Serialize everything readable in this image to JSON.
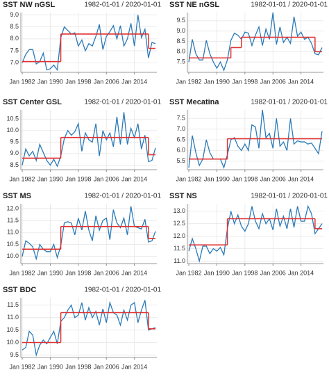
{
  "chart_data": [
    {
      "type": "line",
      "title": "SST NW nGSL",
      "subtitle": "1982-01-01 / 2020-01-01",
      "color": "#2a7ab8",
      "mean_color": "#e03030",
      "x": [
        1982,
        1983,
        1984,
        1985,
        1986,
        1987,
        1988,
        1989,
        1990,
        1991,
        1992,
        1993,
        1994,
        1995,
        1996,
        1997,
        1998,
        1999,
        2000,
        2001,
        2002,
        2003,
        2004,
        2005,
        2006,
        2007,
        2008,
        2009,
        2010,
        2011,
        2012,
        2013,
        2014,
        2015,
        2016,
        2017,
        2018,
        2019,
        2020
      ],
      "values": [
        7.0,
        7.35,
        7.55,
        7.55,
        6.95,
        7.05,
        7.4,
        6.7,
        6.75,
        6.9,
        6.7,
        8.05,
        8.5,
        8.35,
        8.2,
        8.25,
        7.7,
        7.95,
        7.5,
        7.8,
        7.7,
        8.1,
        8.6,
        7.55,
        8.1,
        8.3,
        8.55,
        8.0,
        8.55,
        7.7,
        8.0,
        8.65,
        7.7,
        9.0,
        8.05,
        8.4,
        7.2,
        7.85,
        7.8
      ],
      "mean_segments": [
        {
          "start": 1982,
          "end": 1993,
          "value": 7.05
        },
        {
          "start": 1993,
          "end": 2018,
          "value": 8.2
        },
        {
          "start": 2018,
          "end": 2020,
          "value": 7.6
        }
      ],
      "xlim": [
        1981.6,
        2020.4
      ],
      "xticks": [
        {
          "value": 1982,
          "label": "Jan 1982"
        },
        {
          "value": 1990,
          "label": "Jan 1990"
        },
        {
          "value": 1998,
          "label": "Jan 1998"
        },
        {
          "value": 2006,
          "label": "Jan 2006"
        },
        {
          "value": 2014,
          "label": "Jan 2014"
        }
      ],
      "ylim": [
        6.6,
        9.1
      ],
      "yticks": [
        {
          "value": 7,
          "label": "7.0"
        },
        7.5,
        {
          "value": 8,
          "label": "8.0"
        },
        8.5,
        {
          "value": 9,
          "label": "9.0"
        }
      ],
      "grid": true
    },
    {
      "type": "line",
      "title": "SST NE nGSL",
      "subtitle": "1982-01-01 / 2020-01-01",
      "color": "#2a7ab8",
      "mean_color": "#e03030",
      "x": [
        1982,
        1983,
        1984,
        1985,
        1986,
        1987,
        1988,
        1989,
        1990,
        1991,
        1992,
        1993,
        1994,
        1995,
        1996,
        1997,
        1998,
        1999,
        2000,
        2001,
        2002,
        2003,
        2004,
        2005,
        2006,
        2007,
        2008,
        2009,
        2010,
        2011,
        2012,
        2013,
        2014,
        2015,
        2016,
        2017,
        2018,
        2019,
        2020
      ],
      "values": [
        7.5,
        8.6,
        7.9,
        7.6,
        7.6,
        8.55,
        7.9,
        7.5,
        7.2,
        7.5,
        7.1,
        7.6,
        8.55,
        8.9,
        8.8,
        8.6,
        8.95,
        8.9,
        8.3,
        8.8,
        9.2,
        8.3,
        9.1,
        8.6,
        9.9,
        8.35,
        9.2,
        8.45,
        8.7,
        8.4,
        9.7,
        8.75,
        8.95,
        8.6,
        8.7,
        8.4,
        7.9,
        7.85,
        8.2
      ],
      "mean_segments": [
        {
          "start": 1982,
          "end": 1994,
          "value": 7.7
        },
        {
          "start": 1994,
          "end": 1997,
          "value": 8.2
        },
        {
          "start": 1997,
          "end": 2018,
          "value": 8.7
        },
        {
          "start": 2018,
          "end": 2020,
          "value": 8.0
        }
      ],
      "xlim": [
        1981.6,
        2020.4
      ],
      "xticks": [
        {
          "value": 1982,
          "label": "Jan 1982"
        },
        {
          "value": 1990,
          "label": "Jan 1990"
        },
        {
          "value": 1998,
          "label": "Jan 1998"
        },
        {
          "value": 2006,
          "label": "Jan 2006"
        },
        {
          "value": 2014,
          "label": "Jan 2014"
        }
      ],
      "ylim": [
        7.0,
        9.9
      ],
      "yticks": [
        7.5,
        {
          "value": 8,
          "label": "8.0"
        },
        8.5,
        {
          "value": 9,
          "label": "9.0"
        },
        9.5
      ],
      "grid": true
    },
    {
      "type": "line",
      "title": "SST Center GSL",
      "subtitle": "1982-01-01 / 2020-01-01",
      "color": "#2a7ab8",
      "mean_color": "#e03030",
      "x": [
        1982,
        1983,
        1984,
        1985,
        1986,
        1987,
        1988,
        1989,
        1990,
        1991,
        1992,
        1993,
        1994,
        1995,
        1996,
        1997,
        1998,
        1999,
        2000,
        2001,
        2002,
        2003,
        2004,
        2005,
        2006,
        2007,
        2008,
        2009,
        2010,
        2011,
        2012,
        2013,
        2014,
        2015,
        2016,
        2017,
        2018,
        2019,
        2020
      ],
      "values": [
        8.5,
        9.2,
        8.9,
        9.1,
        8.7,
        9.4,
        9.05,
        8.7,
        8.5,
        8.75,
        8.45,
        8.9,
        9.65,
        10.0,
        9.8,
        9.95,
        10.3,
        9.1,
        9.9,
        9.6,
        9.5,
        10.3,
        8.9,
        10.0,
        9.6,
        9.9,
        9.3,
        10.6,
        9.4,
        10.8,
        9.4,
        10.1,
        9.7,
        10.3,
        9.2,
        9.8,
        8.65,
        8.7,
        9.25
      ],
      "mean_segments": [
        {
          "start": 1982,
          "end": 1993,
          "value": 8.8
        },
        {
          "start": 1993,
          "end": 2018,
          "value": 9.7
        },
        {
          "start": 2018,
          "end": 2020,
          "value": 8.95
        }
      ],
      "xlim": [
        1981.6,
        2020.4
      ],
      "xticks": [
        {
          "value": 1982,
          "label": "Jan 1982"
        },
        {
          "value": 1990,
          "label": "Jan 1990"
        },
        {
          "value": 1998,
          "label": "Jan 1998"
        },
        {
          "value": 2006,
          "label": "Jan 2006"
        },
        {
          "value": 2014,
          "label": "Jan 2014"
        }
      ],
      "ylim": [
        8.3,
        10.9
      ],
      "yticks": [
        8.5,
        {
          "value": 9,
          "label": "9.0"
        },
        9.5,
        {
          "value": 10,
          "label": "10.0"
        },
        10.5
      ],
      "grid": true
    },
    {
      "type": "line",
      "title": "SST Mecatina",
      "subtitle": "1982-01-01 / 2020-01-01",
      "color": "#2a7ab8",
      "mean_color": "#e03030",
      "x": [
        1982,
        1983,
        1984,
        1985,
        1986,
        1987,
        1988,
        1989,
        1990,
        1991,
        1992,
        1993,
        1994,
        1995,
        1996,
        1997,
        1998,
        1999,
        2000,
        2001,
        2002,
        2003,
        2004,
        2005,
        2006,
        2007,
        2008,
        2009,
        2010,
        2011,
        2012,
        2013,
        2014,
        2015,
        2016,
        2017,
        2018,
        2019,
        2020
      ],
      "values": [
        5.2,
        6.7,
        5.9,
        5.3,
        5.6,
        6.5,
        5.9,
        5.6,
        5.6,
        5.6,
        5.2,
        5.8,
        6.5,
        6.6,
        6.2,
        6.0,
        6.3,
        6.0,
        7.2,
        7.1,
        6.1,
        7.9,
        6.6,
        6.8,
        6.1,
        7.5,
        6.2,
        6.4,
        6.0,
        7.5,
        6.3,
        6.45,
        6.4,
        6.4,
        6.3,
        6.35,
        6.1,
        5.85,
        6.9
      ],
      "mean_segments": [
        {
          "start": 1982,
          "end": 1993,
          "value": 5.6
        },
        {
          "start": 1993,
          "end": 2020,
          "value": 6.55
        }
      ],
      "xlim": [
        1981.6,
        2020.4
      ],
      "xticks": [
        {
          "value": 1982,
          "label": "Jan 1982"
        },
        {
          "value": 1990,
          "label": "Jan 1990"
        },
        {
          "value": 1998,
          "label": "Jan 1998"
        },
        {
          "value": 2006,
          "label": "Jan 2006"
        },
        {
          "value": 2014,
          "label": "Jan 2014"
        }
      ],
      "ylim": [
        5.1,
        7.9
      ],
      "yticks": [
        5.5,
        {
          "value": 6,
          "label": "6.0"
        },
        6.5,
        {
          "value": 7,
          "label": "7.0"
        },
        7.5
      ],
      "grid": true
    },
    {
      "type": "line",
      "title": "SST MS",
      "subtitle": "1982-01-01 / 2020-01-01",
      "color": "#2a7ab8",
      "mean_color": "#e03030",
      "x": [
        1982,
        1983,
        1984,
        1985,
        1986,
        1987,
        1988,
        1989,
        1990,
        1991,
        1992,
        1993,
        1994,
        1995,
        1996,
        1997,
        1998,
        1999,
        2000,
        2001,
        2002,
        2003,
        2004,
        2005,
        2006,
        2007,
        2008,
        2009,
        2010,
        2011,
        2012,
        2013,
        2014,
        2015,
        2016,
        2017,
        2018,
        2019,
        2020
      ],
      "values": [
        10.0,
        10.65,
        10.55,
        10.4,
        9.9,
        10.5,
        10.3,
        10.2,
        10.2,
        10.5,
        9.95,
        10.45,
        11.4,
        11.45,
        11.4,
        10.9,
        11.6,
        11.1,
        11.9,
        11.1,
        10.65,
        11.7,
        11.1,
        11.5,
        11.6,
        10.7,
        11.95,
        11.4,
        11.2,
        11.6,
        10.9,
        12.1,
        11.25,
        11.2,
        11.15,
        11.55,
        10.6,
        10.65,
        11.05
      ],
      "mean_segments": [
        {
          "start": 1982,
          "end": 1993,
          "value": 10.3
        },
        {
          "start": 1993,
          "end": 2018,
          "value": 11.25
        },
        {
          "start": 2018,
          "end": 2020,
          "value": 10.75
        }
      ],
      "xlim": [
        1981.6,
        2020.4
      ],
      "xticks": [
        {
          "value": 1982,
          "label": "Jan 1982"
        },
        {
          "value": 1990,
          "label": "Jan 1990"
        },
        {
          "value": 1998,
          "label": "Jan 1998"
        },
        {
          "value": 2006,
          "label": "Jan 2006"
        },
        {
          "value": 2014,
          "label": "Jan 2014"
        }
      ],
      "ylim": [
        9.7,
        12.2
      ],
      "yticks": [
        {
          "value": 10,
          "label": "10.0"
        },
        10.5,
        {
          "value": 11,
          "label": "11.0"
        },
        11.5,
        {
          "value": 12,
          "label": "12.0"
        }
      ],
      "grid": true
    },
    {
      "type": "line",
      "title": "SST NS",
      "subtitle": "1982-01-01 / 2020-01-01",
      "color": "#2a7ab8",
      "mean_color": "#e03030",
      "x": [
        1982,
        1983,
        1984,
        1985,
        1986,
        1987,
        1988,
        1989,
        1990,
        1991,
        1992,
        1993,
        1994,
        1995,
        1996,
        1997,
        1998,
        1999,
        2000,
        2001,
        2002,
        2003,
        2004,
        2005,
        2006,
        2007,
        2008,
        2009,
        2010,
        2011,
        2012,
        2013,
        2014,
        2015,
        2016,
        2017,
        2018,
        2019,
        2020
      ],
      "values": [
        11.4,
        11.9,
        11.5,
        11.0,
        11.6,
        11.6,
        11.3,
        11.5,
        11.4,
        11.55,
        11.25,
        12.3,
        13.0,
        12.5,
        12.85,
        12.4,
        12.2,
        12.5,
        13.2,
        12.6,
        12.3,
        12.9,
        12.5,
        12.7,
        12.25,
        13.1,
        12.4,
        12.8,
        12.3,
        13.1,
        12.35,
        13.2,
        12.6,
        12.6,
        13.2,
        12.9,
        12.1,
        12.3,
        12.5
      ],
      "mean_segments": [
        {
          "start": 1982,
          "end": 1993,
          "value": 11.65
        },
        {
          "start": 1993,
          "end": 2018,
          "value": 12.7
        },
        {
          "start": 2018,
          "end": 2020,
          "value": 12.3
        }
      ],
      "xlim": [
        1981.6,
        2020.4
      ],
      "xticks": [
        {
          "value": 1982,
          "label": "Jan 1982"
        },
        {
          "value": 1990,
          "label": "Jan 1990"
        },
        {
          "value": 1998,
          "label": "Jan 1998"
        },
        {
          "value": 2006,
          "label": "Jan 2006"
        },
        {
          "value": 2014,
          "label": "Jan 2014"
        }
      ],
      "ylim": [
        10.9,
        13.3
      ],
      "yticks": [
        {
          "value": 11,
          "label": "11.0"
        },
        11.5,
        {
          "value": 12,
          "label": "12.0"
        },
        12.5,
        {
          "value": 13,
          "label": "13.0"
        }
      ],
      "grid": true
    },
    {
      "type": "line",
      "title": "SST BDC",
      "subtitle": "1982-01-01 / 2020-01-01",
      "color": "#2a7ab8",
      "mean_color": "#e03030",
      "x": [
        1982,
        1983,
        1984,
        1985,
        1986,
        1987,
        1988,
        1989,
        1990,
        1991,
        1992,
        1993,
        1994,
        1995,
        1996,
        1997,
        1998,
        1999,
        2000,
        2001,
        2002,
        2003,
        2004,
        2005,
        2006,
        2007,
        2008,
        2009,
        2010,
        2011,
        2012,
        2013,
        2014,
        2015,
        2016,
        2017,
        2018,
        2019,
        2020
      ],
      "values": [
        9.7,
        9.8,
        10.45,
        10.3,
        9.5,
        9.9,
        10.1,
        9.95,
        10.2,
        10.45,
        9.95,
        10.85,
        11.0,
        11.3,
        11.5,
        11.0,
        11.1,
        11.6,
        10.9,
        11.4,
        11.0,
        11.25,
        10.7,
        11.35,
        10.8,
        11.6,
        11.2,
        11.1,
        10.7,
        11.3,
        10.9,
        11.5,
        11.6,
        10.8,
        11.3,
        11.7,
        10.5,
        10.55,
        10.6
      ],
      "mean_segments": [
        {
          "start": 1982,
          "end": 1993,
          "value": 10.0
        },
        {
          "start": 1993,
          "end": 2018,
          "value": 11.2
        },
        {
          "start": 2018,
          "end": 2020,
          "value": 10.55
        }
      ],
      "xlim": [
        1981.6,
        2020.4
      ],
      "xticks": [
        {
          "value": 1982,
          "label": "Jan 1982"
        },
        {
          "value": 1990,
          "label": "Jan 1990"
        },
        {
          "value": 1998,
          "label": "Jan 1998"
        },
        {
          "value": 2006,
          "label": "Jan 2006"
        },
        {
          "value": 2014,
          "label": "Jan 2014"
        }
      ],
      "ylim": [
        9.4,
        11.8
      ],
      "yticks": [
        9.5,
        {
          "value": 10,
          "label": "10.0"
        },
        10.5,
        {
          "value": 11,
          "label": "11.0"
        },
        11.5
      ],
      "grid": true
    }
  ]
}
